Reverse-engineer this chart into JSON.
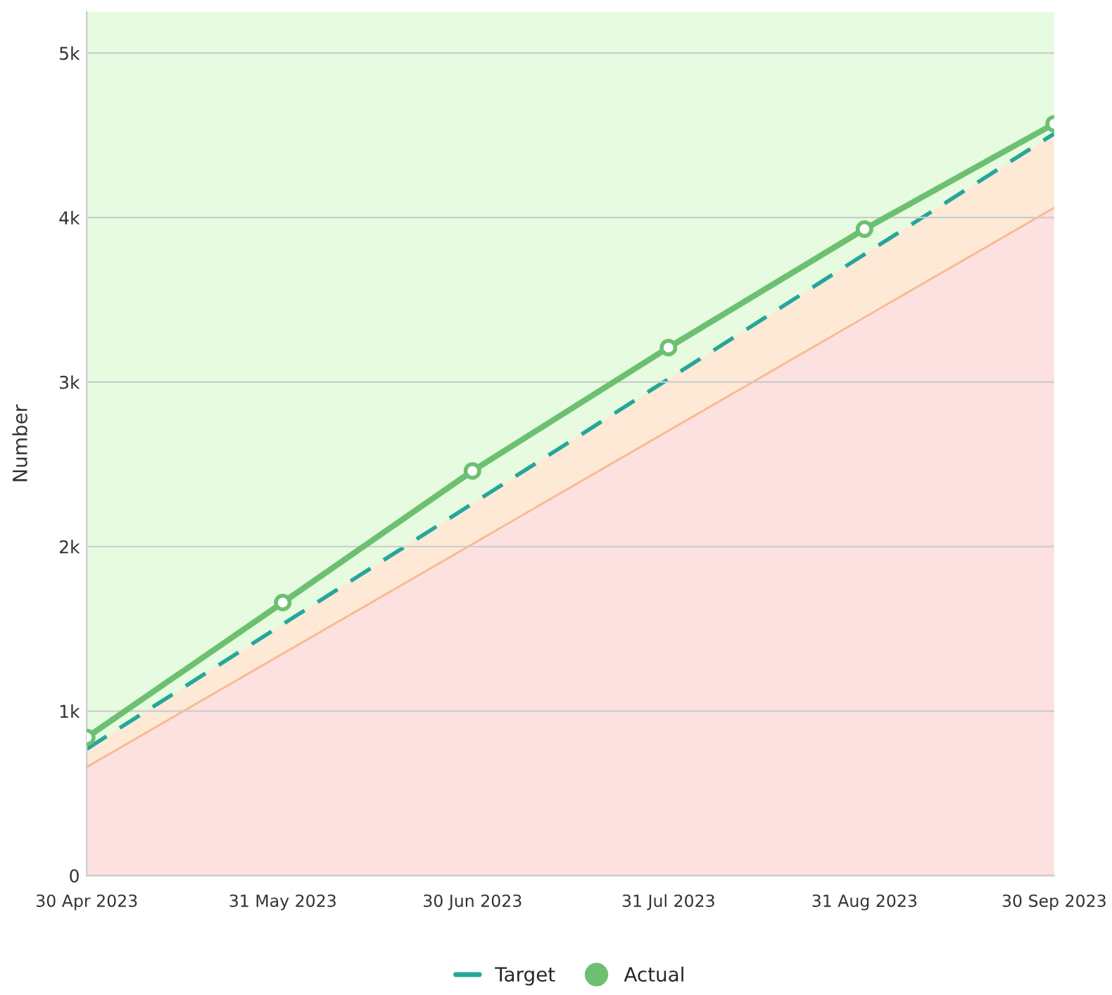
{
  "chart_data": {
    "type": "line",
    "ylabel": "Number",
    "x": [
      "2023-04-30",
      "2023-05-31",
      "2023-06-30",
      "2023-07-31",
      "2023-08-31",
      "2023-09-30"
    ],
    "series": [
      {
        "type": "area",
        "color": "#f8b98c",
        "x": [
          "2023-04-30",
          "2023-09-30"
        ],
        "values": [
          660,
          4060
        ]
      },
      {
        "type": "line",
        "name": "Target",
        "color": "#26a69a",
        "line_style": "dashed",
        "marker": "none",
        "x": [
          "2023-04-30",
          "2023-09-30"
        ],
        "values": [
          770,
          4510
        ],
        "lower": [
          660,
          4060
        ],
        "upper": [
          770,
          4510
        ]
      },
      {
        "name": "Actual",
        "color": "#6cc070",
        "line_style": "solid",
        "marker": "circle",
        "values": [
          840,
          1660,
          2460,
          3210,
          3930,
          4570
        ]
      }
    ],
    "xlim": [
      "2023-04-30",
      "2023-09-30"
    ],
    "xticks": [
      {
        "value": "2023-04-30",
        "label": "30 Apr 2023"
      },
      {
        "value": "2023-05-31",
        "label": "31 May 2023"
      },
      {
        "value": "2023-06-30",
        "label": "30 Jun 2023"
      },
      {
        "value": "2023-07-31",
        "label": "31 Jul 2023"
      },
      {
        "value": "2023-08-31",
        "label": "31 Aug 2023"
      },
      {
        "value": "2023-09-30",
        "label": "30 Sep 2023"
      }
    ],
    "ylim": [
      0,
      5250
    ],
    "yticks": [
      0,
      {
        "value": 1000,
        "label": "1k"
      },
      {
        "value": 2000,
        "label": "2k"
      },
      {
        "value": 3000,
        "label": "3k"
      },
      {
        "value": 4000,
        "label": "4k"
      },
      {
        "value": 5000,
        "label": "5k"
      }
    ],
    "grid": "y",
    "legend": "bottom"
  }
}
